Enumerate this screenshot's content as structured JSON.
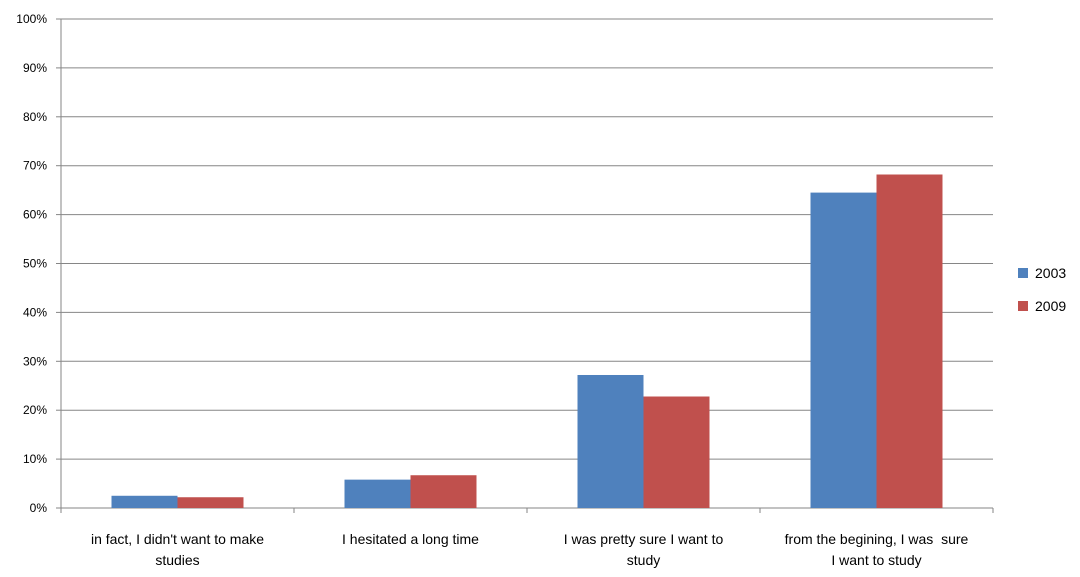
{
  "chart_data": {
    "type": "bar",
    "categories": [
      [
        "in fact, I didn't want to make",
        "studies"
      ],
      [
        "I hesitated a long time"
      ],
      [
        "I was pretty sure I want to",
        "study"
      ],
      [
        "from the begining, I was  sure",
        "I want to study"
      ]
    ],
    "series": [
      {
        "name": "2003",
        "color": "#4F81BD",
        "values": [
          2.5,
          5.8,
          27.2,
          64.5
        ]
      },
      {
        "name": "2009",
        "color": "#C0504D",
        "values": [
          2.2,
          6.7,
          22.8,
          68.2
        ]
      }
    ],
    "ylim": [
      0,
      100
    ],
    "yticks": [
      "0%",
      "10%",
      "20%",
      "30%",
      "40%",
      "50%",
      "60%",
      "70%",
      "80%",
      "90%",
      "100%"
    ],
    "grid": true,
    "legend_position": "right"
  }
}
